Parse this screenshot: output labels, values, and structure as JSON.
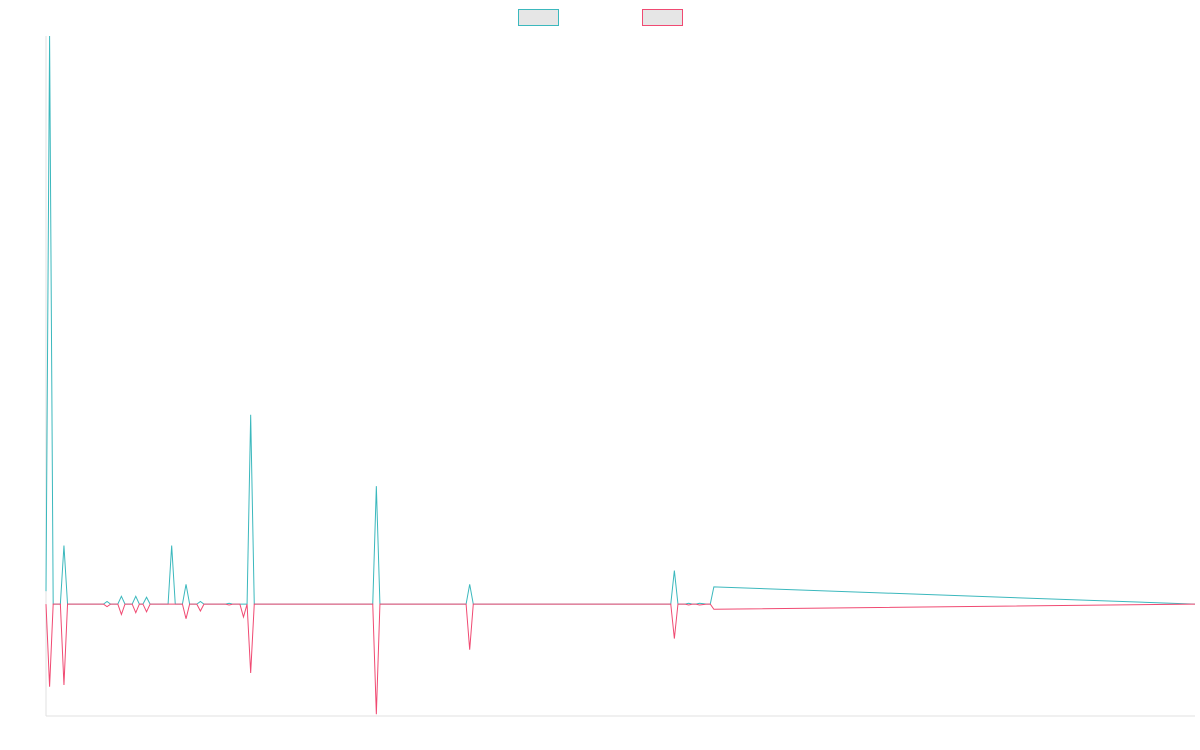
{
  "chart_data": {
    "type": "line",
    "title": "",
    "xlabel": "",
    "ylabel": "",
    "legend_position": "top-center",
    "grid": false,
    "xlim": [
      0,
      160
    ],
    "ylim": [
      -13,
      66
    ],
    "x": [
      0,
      0.5,
      1,
      1.5,
      2,
      2.5,
      3,
      8,
      8.5,
      9,
      9.5,
      10,
      10.5,
      11,
      12,
      12.5,
      13,
      13.5,
      14,
      14.5,
      15,
      17,
      17.5,
      18,
      19,
      19.5,
      20,
      21,
      21.5,
      22,
      25,
      25.5,
      26,
      27,
      27.5,
      28,
      28.5,
      29,
      29.5,
      30,
      33.5,
      39,
      45,
      45.5,
      46,
      46.5,
      47,
      58.5,
      59,
      59.5,
      86.5,
      87,
      87.5,
      88,
      89,
      89.5,
      90,
      90.5,
      91,
      92,
      92.5,
      93,
      160
    ],
    "series": [
      {
        "name": "",
        "color": "#3bb8bd",
        "values": [
          1.5,
          66,
          0,
          0,
          0,
          6.8,
          0,
          0,
          0.3,
          0,
          0,
          0,
          0.9,
          0,
          0,
          0.9,
          0,
          0,
          0.8,
          0,
          0,
          0,
          6.8,
          0,
          0,
          2.3,
          0,
          0,
          0.3,
          0,
          0,
          0.1,
          0,
          0,
          0,
          0,
          22,
          0,
          0,
          0,
          0,
          0,
          0,
          0,
          13.7,
          0,
          0,
          0,
          2.3,
          0,
          0,
          0,
          3.9,
          0,
          0,
          0.1,
          0,
          0,
          0.1,
          0,
          0,
          2,
          0
        ]
      },
      {
        "name": "",
        "color": "#f04a72",
        "values": [
          0,
          -9.6,
          0,
          0,
          0,
          -9.4,
          0,
          0,
          -0.3,
          0,
          0,
          0,
          -1.2,
          0,
          0,
          -1,
          0,
          0,
          -0.9,
          0,
          0,
          0,
          0,
          0,
          0,
          -1.7,
          0,
          0,
          -0.8,
          0,
          0,
          -0.1,
          0,
          0,
          -1.5,
          0,
          -8,
          0,
          0,
          0,
          0,
          0,
          0,
          0,
          -12.8,
          0,
          0,
          0,
          -5.3,
          0,
          0,
          0,
          -4,
          0,
          0,
          -0.1,
          0,
          0,
          -0.1,
          0,
          0,
          -0.6,
          0
        ]
      }
    ]
  }
}
